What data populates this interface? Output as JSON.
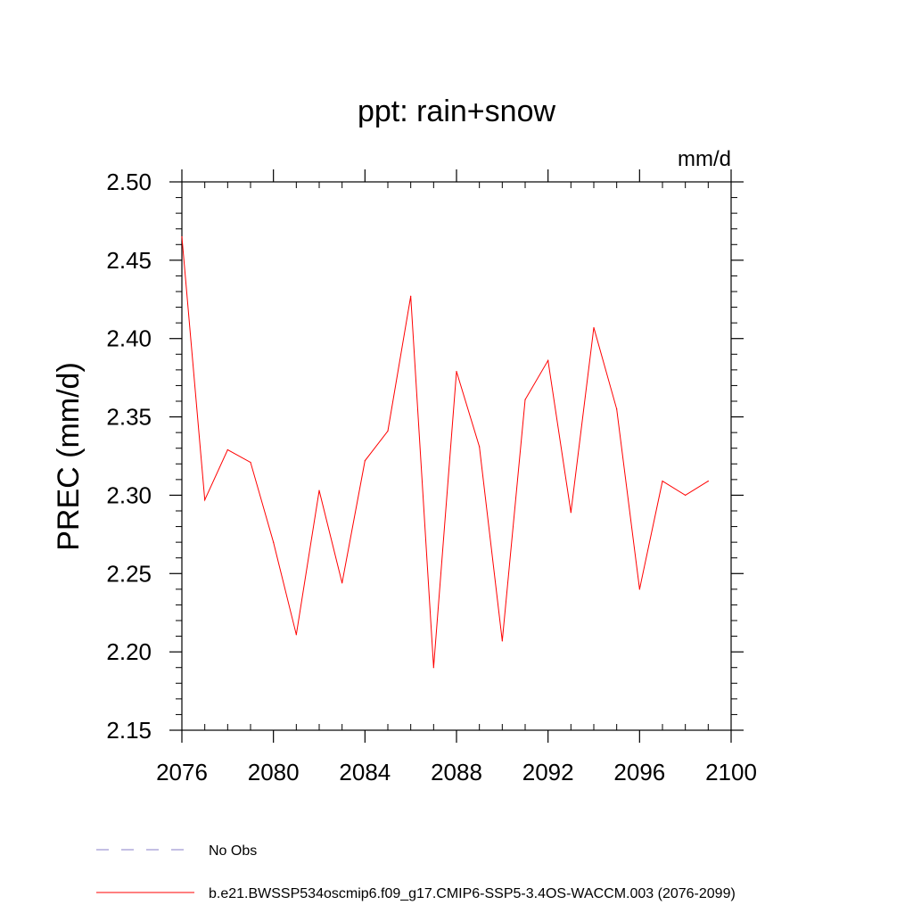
{
  "chart_data": {
    "type": "line",
    "title": "ppt: rain+snow",
    "units_label": "mm/d",
    "ylabel": "PREC  (mm/d)",
    "xlabel": "",
    "xlim": [
      2076,
      2100
    ],
    "ylim": [
      2.15,
      2.5
    ],
    "x_ticks": [
      2076,
      2080,
      2084,
      2088,
      2092,
      2096,
      2100
    ],
    "y_ticks": [
      2.15,
      2.2,
      2.25,
      2.3,
      2.35,
      2.4,
      2.45,
      2.5
    ],
    "y_tick_labels": [
      "2.15",
      "2.20",
      "2.25",
      "2.30",
      "2.35",
      "2.40",
      "2.45",
      "2.50"
    ],
    "series": [
      {
        "name": "b.e21.BWSSP534oscmip6.f09_g17.CMIP6-SSP5-3.4OS-WACCM.003 (2076-2099)",
        "color": "#ff0000",
        "x": [
          2076,
          2077,
          2078,
          2079,
          2080,
          2081,
          2082,
          2083,
          2084,
          2085,
          2086,
          2087,
          2088,
          2089,
          2090,
          2091,
          2092,
          2093,
          2094,
          2095,
          2096,
          2097,
          2098,
          2099
        ],
        "values": [
          2.465,
          2.297,
          2.329,
          2.321,
          2.27,
          2.211,
          2.303,
          2.244,
          2.322,
          2.341,
          2.427,
          2.19,
          2.379,
          2.331,
          2.207,
          2.361,
          2.386,
          2.289,
          2.407,
          2.355,
          2.24,
          2.309,
          2.3,
          2.309
        ]
      }
    ],
    "legend": [
      {
        "label": "No Obs",
        "style": "dashed",
        "color": "#8a7fc8"
      },
      {
        "label": "b.e21.BWSSP534oscmip6.f09_g17.CMIP6-SSP5-3.4OS-WACCM.003 (2076-2099)",
        "style": "solid",
        "color": "#ff0000"
      }
    ],
    "legend_position": "bottom-left"
  }
}
